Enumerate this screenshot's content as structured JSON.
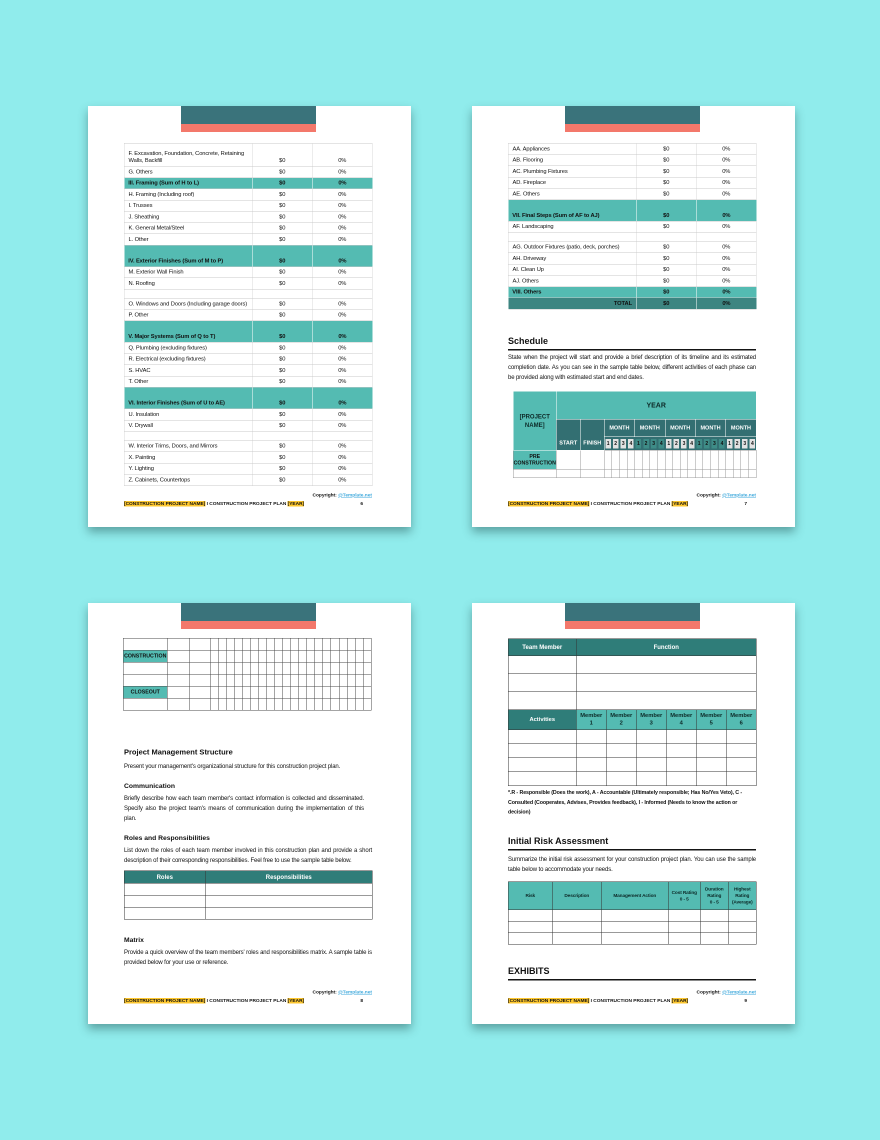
{
  "background": "#90ECEC",
  "palette": {
    "band_teal": "#3A737B",
    "band_salmon": "#F3786B",
    "teal_light": "#54BBB2",
    "teal_dark": "#336F72",
    "teal_header_dark": "#2F7D79",
    "teal_total": "#3D8581",
    "link_blue": "#3FA9DC",
    "highlight_yellow": "#FDC72F"
  },
  "footer": {
    "copyright_label": "Copyright:",
    "copyright_link": "@Template.net",
    "project_name": "[CONSTRUCTION PROJECT NAME]",
    "separator": " I CONSTRUCTION PROJECT PLAN ",
    "year": "[YEAR]"
  },
  "page6": {
    "page_number": "6",
    "cost_rows": [
      {
        "type": "item2",
        "label": "F. Excavation, Foundation, Concrete, Retaining Walls, Backfill",
        "value": "$0",
        "pct": "0%"
      },
      {
        "type": "item",
        "label": "G. Others",
        "value": "$0",
        "pct": "0%"
      },
      {
        "type": "section",
        "label": "III. Framing (Sum of H to L)",
        "value": "$0",
        "pct": "0%"
      },
      {
        "type": "item",
        "label": "H. Framing (Including roof)",
        "value": "$0",
        "pct": "0%"
      },
      {
        "type": "item",
        "label": "I. Trusses",
        "value": "$0",
        "pct": "0%"
      },
      {
        "type": "item",
        "label": "J. Sheathing",
        "value": "$0",
        "pct": "0%"
      },
      {
        "type": "item",
        "label": "K. General Metal/Steel",
        "value": "$0",
        "pct": "0%"
      },
      {
        "type": "item",
        "label": "L. Other",
        "value": "$0",
        "pct": "0%"
      },
      {
        "type": "section_tall",
        "label": "IV. Exterior Finishes (Sum of M to P)",
        "value": "$0",
        "pct": "0%"
      },
      {
        "type": "item",
        "label": "M. Exterior Wall Finish",
        "value": "$0",
        "pct": "0%"
      },
      {
        "type": "item",
        "label": "N. Roofing",
        "value": "$0",
        "pct": "0%"
      },
      {
        "type": "spacer",
        "label": "",
        "value": "",
        "pct": ""
      },
      {
        "type": "item",
        "label": "O. Windows and Doors (Including garage doors)",
        "value": "$0",
        "pct": "0%"
      },
      {
        "type": "item",
        "label": "P. Other",
        "value": "$0",
        "pct": "0%"
      },
      {
        "type": "section_tall",
        "label": "V. Major Systems (Sum of Q to T)",
        "value": "$0",
        "pct": "0%"
      },
      {
        "type": "item",
        "label": "Q. Plumbing (excluding fixtures)",
        "value": "$0",
        "pct": "0%"
      },
      {
        "type": "item",
        "label": "R. Electrical (excluding fixtures)",
        "value": "$0",
        "pct": "0%"
      },
      {
        "type": "item",
        "label": "S. HVAC",
        "value": "$0",
        "pct": "0%"
      },
      {
        "type": "item",
        "label": "T. Other",
        "value": "$0",
        "pct": "0%"
      },
      {
        "type": "section_tall",
        "label": "VI. Interior Finishes (Sum of U to AE)",
        "value": "$0",
        "pct": "0%"
      },
      {
        "type": "item",
        "label": "U. Insulation",
        "value": "$0",
        "pct": "0%"
      },
      {
        "type": "item",
        "label": "V. Drywall",
        "value": "$0",
        "pct": "0%"
      },
      {
        "type": "spacer",
        "label": "",
        "value": "",
        "pct": ""
      },
      {
        "type": "item",
        "label": "W. Interior Trims, Doors, and Mirrors",
        "value": "$0",
        "pct": "0%"
      },
      {
        "type": "item",
        "label": "X. Painting",
        "value": "$0",
        "pct": "0%"
      },
      {
        "type": "item",
        "label": "Y. Lighting",
        "value": "$0",
        "pct": "0%"
      },
      {
        "type": "item",
        "label": "Z. Cabinets, Countertops",
        "value": "$0",
        "pct": "0%"
      }
    ]
  },
  "page7": {
    "page_number": "7",
    "cost_rows": [
      {
        "type": "item",
        "label": "AA. Appliances",
        "value": "$0",
        "pct": "0%"
      },
      {
        "type": "item",
        "label": "AB. Flooring",
        "value": "$0",
        "pct": "0%"
      },
      {
        "type": "item",
        "label": "AC. Plumbing Fixtures",
        "value": "$0",
        "pct": "0%"
      },
      {
        "type": "item",
        "label": "AD. Fireplace",
        "value": "$0",
        "pct": "0%"
      },
      {
        "type": "item",
        "label": "AE. Others",
        "value": "$0",
        "pct": "0%"
      },
      {
        "type": "section_tall",
        "label": "VII. Final Steps (Sum of AF to AJ)",
        "value": "$0",
        "pct": "0%"
      },
      {
        "type": "item",
        "label": "AF. Landscaping",
        "value": "$0",
        "pct": "0%"
      },
      {
        "type": "spacer",
        "label": "",
        "value": "",
        "pct": ""
      },
      {
        "type": "item",
        "label": "AG. Outdoor Fixtures (patio, deck, porches)",
        "value": "$0",
        "pct": "0%"
      },
      {
        "type": "item",
        "label": "AH. Driveway",
        "value": "$0",
        "pct": "0%"
      },
      {
        "type": "item",
        "label": "AI. Clean Up",
        "value": "$0",
        "pct": "0%"
      },
      {
        "type": "item",
        "label": "AJ. Others",
        "value": "$0",
        "pct": "0%"
      },
      {
        "type": "section",
        "label": "VIII. Others",
        "value": "$0",
        "pct": "0%"
      },
      {
        "type": "total",
        "label": "TOTAL",
        "value": "$0",
        "pct": "0%"
      }
    ],
    "schedule_heading": "Schedule",
    "schedule_para": "State when the project will start and provide a brief description of its timeline and its estimated completion date. As you can see in the sample table below, different activities of each phase can be provided along with estimated start and end dates.",
    "schedule_table": {
      "project_cell": "[PROJECT\nNAME]",
      "year_label": "YEAR",
      "start_label": "START",
      "finish_label": "FINISH",
      "month_label": "MONTH",
      "month_count": 5,
      "week_numbers": [
        "1",
        "2",
        "3",
        "4"
      ],
      "body_rows": [
        {
          "label": "PRE\nCONSTRUCTION",
          "teal": true
        },
        {
          "label": "",
          "teal": false
        }
      ]
    }
  },
  "page8": {
    "page_number": "8",
    "grid_rows": [
      {
        "label": "",
        "teal": false
      },
      {
        "label": "CONSTRUCTION",
        "teal": true
      },
      {
        "label": "",
        "teal": false
      },
      {
        "label": "",
        "teal": false
      },
      {
        "label": "CLOSEOUT",
        "teal": true
      },
      {
        "label": "",
        "teal": false
      }
    ],
    "pm_heading": "Project Management Structure",
    "pm_para": "Present your management's organizational structure for this construction project plan.",
    "comm_heading": "Communication",
    "comm_para": "Briefly describe how each team member's contact information is collected and disseminated. Specify also the project team's means of communication during the implementation of this plan.",
    "rr_heading": "Roles and Responsibilities",
    "rr_para": "List down the roles of each team member involved in this construction plan and provide a short description of their corresponding responsibilities. Feel free to use the sample table below.",
    "roles_table": {
      "headers": [
        "Roles",
        "Responsibilities"
      ],
      "empty_row_count": 3
    },
    "matrix_heading": "Matrix",
    "matrix_para": "Provide a quick overview of the team members' roles and responsibilities matrix. A sample table is provided below for your use or reference."
  },
  "page9": {
    "page_number": "9",
    "team_table": {
      "headers": [
        "Team Member",
        "Function"
      ],
      "empty_row_count": 3
    },
    "raci_table": {
      "activities_label": "Activities",
      "member_labels": [
        "Member\n1",
        "Member\n2",
        "Member\n3",
        "Member\n4",
        "Member\n5",
        "Member\n6"
      ],
      "empty_row_count": 4
    },
    "raci_note": "*.R - Responsible (Does the work), A - Accountable (Ultimately responsible; Has No/Yes Veto), C - Consulted (Cooperates, Advises, Provides feedback), I - Informed (Needs to know the action or decision)",
    "risk_heading": "Initial Risk Assessment",
    "risk_para": "Summarize the initial risk assessment for your construction project plan. You can use the sample table below to accommodate your needs.",
    "risk_table": {
      "headers": [
        "Risk",
        "Description",
        "Management Action",
        "Cost Rating\n0 - 5",
        "Duration\nRating\n0 - 5",
        "Highest\nRating\n(Average)"
      ],
      "empty_row_count": 3
    },
    "exhibits_heading": "EXHIBITS"
  }
}
